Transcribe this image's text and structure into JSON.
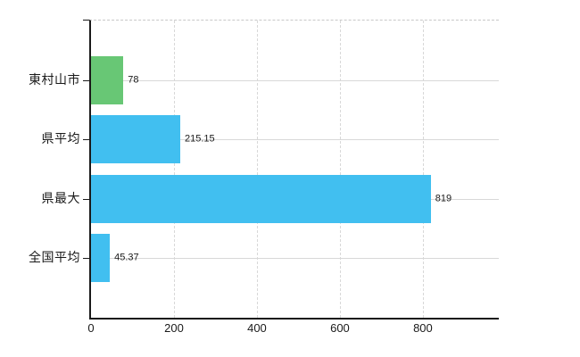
{
  "chart_data": {
    "type": "bar",
    "orientation": "horizontal",
    "title": "",
    "categories": [
      "東村山市",
      "県平均",
      "県最大",
      "全国平均"
    ],
    "values": [
      78,
      215.15,
      819,
      45.37
    ],
    "value_labels": [
      "78",
      "215.15",
      "819",
      "45.37"
    ],
    "series": [
      {
        "name": "値",
        "values": [
          78,
          215.15,
          819,
          45.37
        ]
      }
    ],
    "bar_colors": [
      "#68c775",
      "#41bff0",
      "#41bff0",
      "#41bff0"
    ],
    "x_ticks": [
      0,
      200,
      400,
      600,
      800
    ],
    "x_tick_labels": [
      "0",
      "200",
      "400",
      "600",
      "800"
    ],
    "xlim": [
      0,
      983
    ],
    "xlabel": "",
    "ylabel": "",
    "grid": true,
    "legend": false
  },
  "style": {
    "background": "#ffffff",
    "axis_color": "#1a1a1a",
    "grid_color": "#d8d8d8",
    "top_border_color": "#c8c8c8",
    "text_color": "#1a1a1a"
  }
}
